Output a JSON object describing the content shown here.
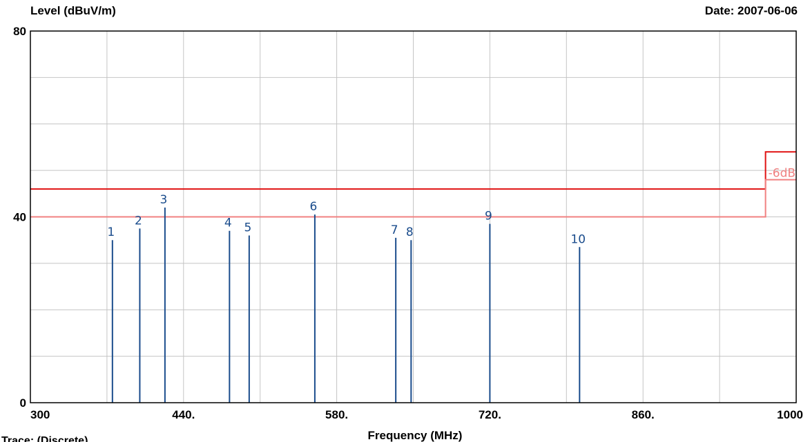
{
  "chart_data": {
    "type": "bar",
    "ylabel": "Level (dBuV/m)",
    "xlabel": "Frequency (MHz)",
    "date": "Date: 2007-06-06",
    "xlim": [
      300,
      1000
    ],
    "ylim": [
      0,
      80
    ],
    "y_tick_labels": [
      "0",
      "40",
      "80"
    ],
    "x_ticks": [
      300,
      440,
      580,
      720,
      860,
      1000
    ],
    "x_tick_labels": [
      "300",
      "440.",
      "580.",
      "720.",
      "860.",
      "1000"
    ],
    "grid": true,
    "markers": [
      {
        "label": "1",
        "frequency": 375,
        "level": 35
      },
      {
        "label": "2",
        "frequency": 400,
        "level": 37.5
      },
      {
        "label": "3",
        "frequency": 423,
        "level": 42
      },
      {
        "label": "4",
        "frequency": 482,
        "level": 37
      },
      {
        "label": "5",
        "frequency": 500,
        "level": 36
      },
      {
        "label": "6",
        "frequency": 560,
        "level": 40.5
      },
      {
        "label": "7",
        "frequency": 634,
        "level": 35.5
      },
      {
        "label": "8",
        "frequency": 648,
        "level": 35
      },
      {
        "label": "9",
        "frequency": 720,
        "level": 38.5
      },
      {
        "label": "10",
        "frequency": 802,
        "level": 33.5
      }
    ],
    "limit_lines": [
      {
        "name": "limit",
        "color": "#e01010",
        "steps": [
          [
            300,
            46
          ],
          [
            972,
            46
          ],
          [
            972,
            54
          ],
          [
            1000,
            54
          ]
        ]
      },
      {
        "name": "-6dB",
        "color": "#f08080",
        "steps": [
          [
            300,
            40
          ],
          [
            972,
            40
          ],
          [
            972,
            48
          ],
          [
            1000,
            48
          ]
        ]
      }
    ],
    "limit_annotation": "-6dB",
    "trace_label": "Trace: (Discrete)",
    "colors": {
      "marker": "#1a4c8c",
      "grid": "#c4c4c4",
      "limit": "#e01010",
      "limit_6db": "#f08080"
    }
  }
}
